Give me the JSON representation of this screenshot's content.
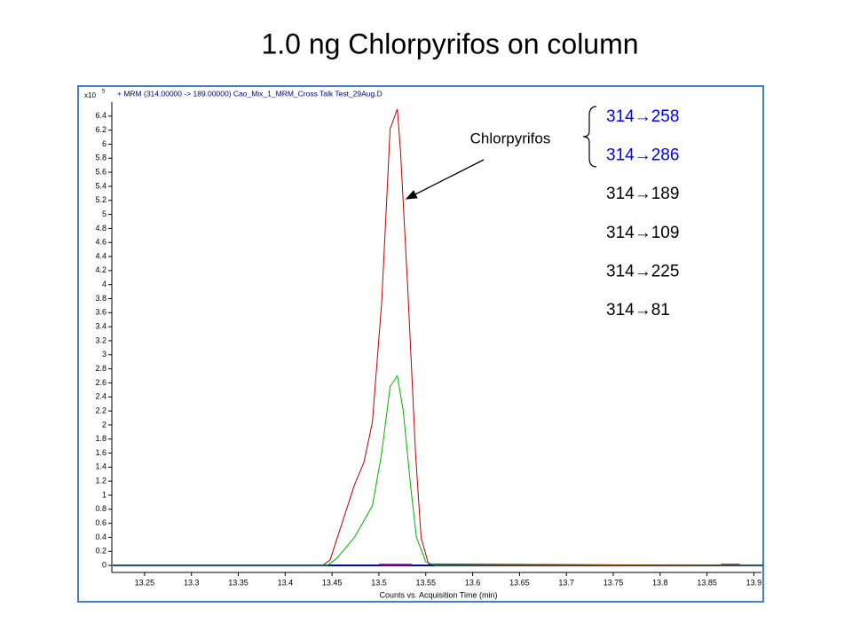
{
  "chart_data": {
    "type": "line",
    "title": "1.0 ng Chlorpyrifos on column",
    "subtitle": "+ MRM (314.00000 -> 189.00000) Cao_Mix_1_MRM_Cross Talk Test_29Aug.D",
    "y_multiplier": "x10",
    "y_exponent": "5",
    "x_label": "Counts vs. Acquisition Time (min)",
    "annotation": "Chlorpyrifos",
    "transitions": [
      {
        "label": "314→258",
        "color": "#0000ff"
      },
      {
        "label": "314→286",
        "color": "#0000ff"
      },
      {
        "label": "314→189",
        "color": "#000000"
      },
      {
        "label": "314→109",
        "color": "#000000"
      },
      {
        "label": "314→225",
        "color": "#000000"
      },
      {
        "label": "314→81",
        "color": "#000000"
      }
    ],
    "series": [
      {
        "color": "#000080",
        "x": [
          13.216,
          13.91
        ],
        "values": [
          0,
          0
        ]
      },
      {
        "color": "#8000a0",
        "x": [
          13.5,
          13.535,
          13.536,
          13.865,
          13.885
        ],
        "values": [
          0.01,
          0.01,
          null,
          0.01,
          0.01
        ]
      },
      {
        "color": "#c00000",
        "x": [
          13.216,
          13.44,
          13.448,
          13.474,
          13.484,
          13.493,
          13.503,
          13.512,
          13.5196,
          13.523,
          13.531,
          13.539,
          13.545,
          13.553,
          13.91
        ],
        "values": [
          0,
          0,
          0.08,
          1.15,
          1.47,
          2.04,
          3.75,
          6.22,
          6.5,
          5.9,
          3.88,
          1.6,
          0.39,
          0.02,
          0
        ]
      },
      {
        "color": "#00b000",
        "x": [
          13.216,
          13.445,
          13.455,
          13.474,
          13.493,
          13.503,
          13.512,
          13.5196,
          13.526,
          13.534,
          13.54,
          13.55,
          13.56,
          13.91
        ],
        "values": [
          0,
          0,
          0.1,
          0.4,
          0.85,
          1.6,
          2.55,
          2.7,
          2.2,
          1.1,
          0.4,
          0.05,
          0,
          0
        ]
      }
    ],
    "xlim": [
      13.216,
      13.91
    ],
    "ylim": [
      -0.1,
      6.6
    ],
    "xticks": [
      13.25,
      13.3,
      13.35,
      13.4,
      13.45,
      13.5,
      13.55,
      13.6,
      13.65,
      13.7,
      13.75,
      13.8,
      13.85,
      13.9
    ],
    "yticks": [
      0,
      0.2,
      0.4,
      0.6,
      0.8,
      1,
      1.2,
      1.4,
      1.6,
      1.8,
      2,
      2.2,
      2.4,
      2.6,
      2.8,
      3,
      3.2,
      3.4,
      3.6,
      3.8,
      4,
      4.2,
      4.4,
      4.6,
      4.8,
      5,
      5.2,
      5.4,
      5.6,
      5.8,
      6,
      6.2,
      6.4
    ]
  }
}
